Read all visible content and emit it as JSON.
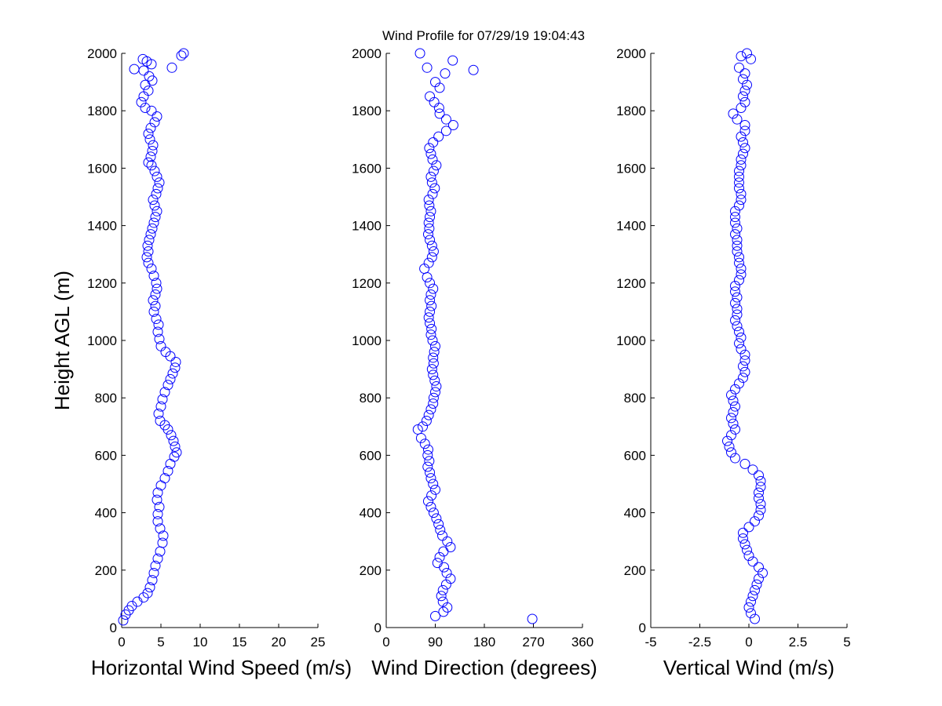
{
  "title": "Wind Profile for  07/29/19 19:04:43",
  "chart_data": [
    {
      "type": "scatter",
      "xlabel": "Horizontal Wind Speed (m/s)",
      "ylabel": "Height AGL (m)",
      "xlim": [
        0,
        25
      ],
      "ylim": [
        0,
        2000
      ],
      "xticks": [
        "0",
        "5",
        "10",
        "15",
        "20",
        "25"
      ],
      "yticks": [
        "0",
        "200",
        "400",
        "600",
        "800",
        "1000",
        "1200",
        "1400",
        "1600",
        "1800",
        "2000"
      ],
      "marker_color": "#0000ff",
      "grid": false,
      "points": [
        [
          0.2,
          25
        ],
        [
          0.5,
          45
        ],
        [
          0.9,
          60
        ],
        [
          1.3,
          75
        ],
        [
          2.0,
          90
        ],
        [
          2.8,
          105
        ],
        [
          3.3,
          120
        ],
        [
          3.6,
          140
        ],
        [
          3.9,
          165
        ],
        [
          4.1,
          190
        ],
        [
          4.3,
          215
        ],
        [
          4.6,
          240
        ],
        [
          4.9,
          265
        ],
        [
          5.2,
          295
        ],
        [
          5.3,
          320
        ],
        [
          4.9,
          345
        ],
        [
          4.6,
          370
        ],
        [
          4.6,
          395
        ],
        [
          4.8,
          420
        ],
        [
          4.5,
          445
        ],
        [
          4.6,
          470
        ],
        [
          5.0,
          495
        ],
        [
          5.5,
          520
        ],
        [
          5.9,
          545
        ],
        [
          6.2,
          570
        ],
        [
          6.7,
          595
        ],
        [
          7.0,
          610
        ],
        [
          6.8,
          630
        ],
        [
          6.6,
          650
        ],
        [
          6.3,
          670
        ],
        [
          5.9,
          690
        ],
        [
          5.5,
          705
        ],
        [
          4.9,
          720
        ],
        [
          4.7,
          745
        ],
        [
          5.0,
          770
        ],
        [
          5.2,
          795
        ],
        [
          5.5,
          820
        ],
        [
          5.9,
          845
        ],
        [
          6.2,
          865
        ],
        [
          6.5,
          885
        ],
        [
          6.8,
          905
        ],
        [
          6.9,
          925
        ],
        [
          6.2,
          945
        ],
        [
          5.6,
          960
        ],
        [
          5.0,
          980
        ],
        [
          4.8,
          1005
        ],
        [
          4.6,
          1030
        ],
        [
          4.7,
          1055
        ],
        [
          4.4,
          1075
        ],
        [
          4.1,
          1100
        ],
        [
          4.3,
          1120
        ],
        [
          4.0,
          1140
        ],
        [
          4.3,
          1160
        ],
        [
          4.5,
          1180
        ],
        [
          4.4,
          1200
        ],
        [
          4.1,
          1225
        ],
        [
          3.8,
          1250
        ],
        [
          3.4,
          1270
        ],
        [
          3.2,
          1290
        ],
        [
          3.4,
          1310
        ],
        [
          3.3,
          1330
        ],
        [
          3.5,
          1350
        ],
        [
          3.7,
          1370
        ],
        [
          3.9,
          1390
        ],
        [
          4.1,
          1410
        ],
        [
          4.3,
          1430
        ],
        [
          4.5,
          1450
        ],
        [
          4.2,
          1470
        ],
        [
          4.0,
          1490
        ],
        [
          4.4,
          1510
        ],
        [
          4.6,
          1530
        ],
        [
          4.8,
          1550
        ],
        [
          4.5,
          1570
        ],
        [
          4.2,
          1590
        ],
        [
          3.8,
          1610
        ],
        [
          3.4,
          1620
        ],
        [
          3.7,
          1640
        ],
        [
          3.9,
          1660
        ],
        [
          4.0,
          1680
        ],
        [
          3.6,
          1700
        ],
        [
          3.4,
          1720
        ],
        [
          3.7,
          1740
        ],
        [
          4.2,
          1760
        ],
        [
          4.5,
          1780
        ],
        [
          3.8,
          1800
        ],
        [
          3.0,
          1810
        ],
        [
          2.5,
          1830
        ],
        [
          2.8,
          1850
        ],
        [
          3.4,
          1870
        ],
        [
          3.0,
          1890
        ],
        [
          3.9,
          1905
        ],
        [
          3.5,
          1920
        ],
        [
          2.8,
          1940
        ],
        [
          1.6,
          1945
        ],
        [
          6.4,
          1950
        ],
        [
          3.8,
          1962
        ],
        [
          3.2,
          1972
        ],
        [
          2.7,
          1980
        ],
        [
          7.6,
          1992
        ],
        [
          7.9,
          2000
        ]
      ]
    },
    {
      "type": "scatter",
      "xlabel": "Wind Direction (degrees)",
      "ylabel": "",
      "xlim": [
        0,
        360
      ],
      "ylim": [
        0,
        2000
      ],
      "xticks": [
        "0",
        "90",
        "180",
        "270",
        "360"
      ],
      "yticks": [
        "0",
        "200",
        "400",
        "600",
        "800",
        "1000",
        "1200",
        "1400",
        "1600",
        "1800",
        "2000"
      ],
      "marker_color": "#0000ff",
      "grid": false,
      "points": [
        [
          268,
          30
        ],
        [
          90,
          40
        ],
        [
          105,
          55
        ],
        [
          112,
          70
        ],
        [
          104,
          90
        ],
        [
          101,
          110
        ],
        [
          104,
          130
        ],
        [
          110,
          150
        ],
        [
          118,
          170
        ],
        [
          111,
          190
        ],
        [
          106,
          210
        ],
        [
          94,
          225
        ],
        [
          98,
          245
        ],
        [
          105,
          265
        ],
        [
          118,
          280
        ],
        [
          112,
          300
        ],
        [
          103,
          320
        ],
        [
          99,
          340
        ],
        [
          96,
          360
        ],
        [
          92,
          380
        ],
        [
          87,
          400
        ],
        [
          82,
          420
        ],
        [
          77,
          440
        ],
        [
          83,
          460
        ],
        [
          90,
          480
        ],
        [
          86,
          500
        ],
        [
          82,
          520
        ],
        [
          80,
          540
        ],
        [
          76,
          560
        ],
        [
          79,
          580
        ],
        [
          76,
          600
        ],
        [
          77,
          620
        ],
        [
          71,
          640
        ],
        [
          64,
          660
        ],
        [
          58,
          690
        ],
        [
          67,
          700
        ],
        [
          74,
          720
        ],
        [
          78,
          740
        ],
        [
          82,
          760
        ],
        [
          86,
          780
        ],
        [
          87,
          800
        ],
        [
          90,
          820
        ],
        [
          92,
          840
        ],
        [
          89,
          860
        ],
        [
          86,
          880
        ],
        [
          84,
          900
        ],
        [
          87,
          920
        ],
        [
          86,
          940
        ],
        [
          88,
          960
        ],
        [
          90,
          980
        ],
        [
          85,
          1000
        ],
        [
          82,
          1020
        ],
        [
          83,
          1040
        ],
        [
          80,
          1060
        ],
        [
          78,
          1080
        ],
        [
          80,
          1100
        ],
        [
          83,
          1120
        ],
        [
          80,
          1140
        ],
        [
          82,
          1160
        ],
        [
          86,
          1180
        ],
        [
          80,
          1200
        ],
        [
          75,
          1220
        ],
        [
          70,
          1250
        ],
        [
          78,
          1270
        ],
        [
          84,
          1290
        ],
        [
          87,
          1310
        ],
        [
          84,
          1330
        ],
        [
          80,
          1350
        ],
        [
          77,
          1370
        ],
        [
          79,
          1390
        ],
        [
          78,
          1410
        ],
        [
          80,
          1430
        ],
        [
          82,
          1450
        ],
        [
          79,
          1470
        ],
        [
          78,
          1490
        ],
        [
          85,
          1510
        ],
        [
          89,
          1530
        ],
        [
          84,
          1550
        ],
        [
          82,
          1570
        ],
        [
          87,
          1590
        ],
        [
          92,
          1610
        ],
        [
          85,
          1630
        ],
        [
          82,
          1650
        ],
        [
          79,
          1670
        ],
        [
          86,
          1690
        ],
        [
          96,
          1710
        ],
        [
          110,
          1730
        ],
        [
          123,
          1750
        ],
        [
          110,
          1770
        ],
        [
          98,
          1790
        ],
        [
          97,
          1810
        ],
        [
          88,
          1830
        ],
        [
          80,
          1850
        ],
        [
          98,
          1880
        ],
        [
          90,
          1900
        ],
        [
          108,
          1930
        ],
        [
          75,
          1950
        ],
        [
          160,
          1942
        ],
        [
          122,
          1975
        ],
        [
          62,
          2000
        ]
      ]
    },
    {
      "type": "scatter",
      "xlabel": "Vertical Wind (m/s)",
      "ylabel": "",
      "xlim": [
        -5,
        5
      ],
      "xlim_reversed": false,
      "ylim": [
        0,
        2000
      ],
      "xticks": [
        "-5",
        "-2.5",
        "0",
        "2.5",
        "5"
      ],
      "yticks": [
        "0",
        "200",
        "400",
        "600",
        "800",
        "1000",
        "1200",
        "1400",
        "1600",
        "1800",
        "2000"
      ],
      "marker_color": "#0000ff",
      "grid": false,
      "points": [
        [
          0.3,
          30
        ],
        [
          0.1,
          50
        ],
        [
          0.0,
          70
        ],
        [
          0.1,
          90
        ],
        [
          0.2,
          110
        ],
        [
          0.3,
          130
        ],
        [
          0.4,
          150
        ],
        [
          0.5,
          170
        ],
        [
          0.7,
          190
        ],
        [
          0.5,
          210
        ],
        [
          0.2,
          230
        ],
        [
          0.0,
          250
        ],
        [
          -0.1,
          270
        ],
        [
          -0.2,
          290
        ],
        [
          -0.3,
          310
        ],
        [
          -0.3,
          330
        ],
        [
          0.0,
          350
        ],
        [
          0.3,
          370
        ],
        [
          0.5,
          390
        ],
        [
          0.6,
          410
        ],
        [
          0.6,
          430
        ],
        [
          0.5,
          450
        ],
        [
          0.5,
          470
        ],
        [
          0.6,
          490
        ],
        [
          0.6,
          510
        ],
        [
          0.5,
          530
        ],
        [
          0.2,
          550
        ],
        [
          -0.2,
          570
        ],
        [
          -0.7,
          590
        ],
        [
          -0.9,
          610
        ],
        [
          -1.0,
          630
        ],
        [
          -1.1,
          650
        ],
        [
          -0.9,
          670
        ],
        [
          -0.7,
          690
        ],
        [
          -0.8,
          710
        ],
        [
          -0.9,
          730
        ],
        [
          -0.8,
          750
        ],
        [
          -0.7,
          770
        ],
        [
          -0.8,
          790
        ],
        [
          -0.9,
          810
        ],
        [
          -0.7,
          830
        ],
        [
          -0.5,
          850
        ],
        [
          -0.3,
          870
        ],
        [
          -0.2,
          890
        ],
        [
          -0.3,
          910
        ],
        [
          -0.2,
          930
        ],
        [
          -0.2,
          950
        ],
        [
          -0.4,
          970
        ],
        [
          -0.5,
          990
        ],
        [
          -0.4,
          1010
        ],
        [
          -0.5,
          1030
        ],
        [
          -0.6,
          1050
        ],
        [
          -0.7,
          1070
        ],
        [
          -0.6,
          1090
        ],
        [
          -0.6,
          1110
        ],
        [
          -0.7,
          1130
        ],
        [
          -0.6,
          1150
        ],
        [
          -0.7,
          1170
        ],
        [
          -0.7,
          1190
        ],
        [
          -0.5,
          1210
        ],
        [
          -0.4,
          1230
        ],
        [
          -0.4,
          1250
        ],
        [
          -0.5,
          1270
        ],
        [
          -0.5,
          1290
        ],
        [
          -0.6,
          1310
        ],
        [
          -0.6,
          1330
        ],
        [
          -0.6,
          1350
        ],
        [
          -0.7,
          1370
        ],
        [
          -0.6,
          1390
        ],
        [
          -0.7,
          1410
        ],
        [
          -0.7,
          1430
        ],
        [
          -0.7,
          1450
        ],
        [
          -0.5,
          1470
        ],
        [
          -0.4,
          1490
        ],
        [
          -0.4,
          1510
        ],
        [
          -0.5,
          1530
        ],
        [
          -0.5,
          1550
        ],
        [
          -0.5,
          1570
        ],
        [
          -0.5,
          1590
        ],
        [
          -0.4,
          1610
        ],
        [
          -0.4,
          1630
        ],
        [
          -0.3,
          1650
        ],
        [
          -0.2,
          1670
        ],
        [
          -0.3,
          1690
        ],
        [
          -0.4,
          1710
        ],
        [
          -0.2,
          1730
        ],
        [
          -0.2,
          1750
        ],
        [
          -0.6,
          1770
        ],
        [
          -0.8,
          1790
        ],
        [
          -0.4,
          1810
        ],
        [
          -0.2,
          1830
        ],
        [
          -0.3,
          1850
        ],
        [
          -0.2,
          1870
        ],
        [
          -0.1,
          1890
        ],
        [
          -0.3,
          1910
        ],
        [
          -0.2,
          1930
        ],
        [
          -0.5,
          1950
        ],
        [
          0.1,
          1980
        ],
        [
          -0.4,
          1990
        ],
        [
          -0.1,
          2000
        ]
      ]
    }
  ]
}
